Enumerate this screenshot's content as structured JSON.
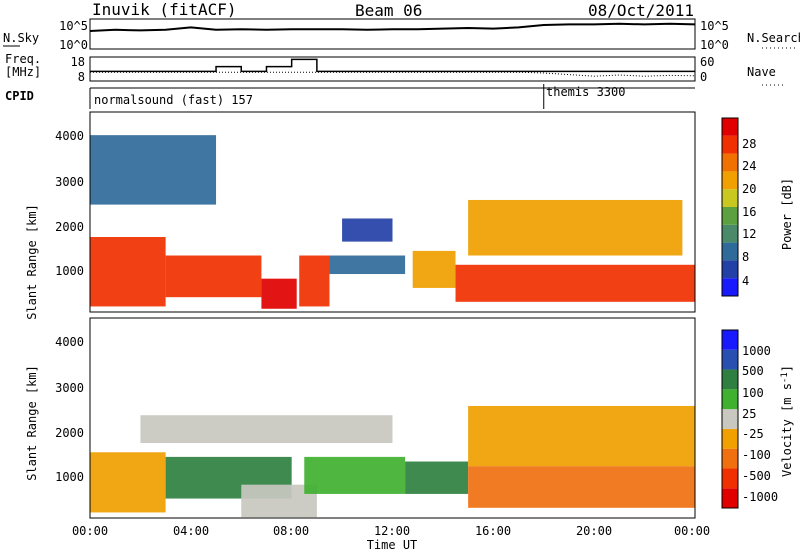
{
  "header": {
    "station": "Inuvik (fitACF)",
    "beam": "Beam 06",
    "date": "08/Oct/2011"
  },
  "nsky": {
    "label": "N.Sky",
    "ticks": [
      "10^5",
      "10^0"
    ],
    "right_label": "N.Search"
  },
  "freq": {
    "label_line1": "Freq.",
    "label_line2": "[MHz]",
    "ticks": [
      "18",
      "8"
    ],
    "right_ticks": [
      "60",
      "0"
    ],
    "right_label": "Nave"
  },
  "cpid": {
    "label": "CPID",
    "modes": [
      {
        "text": "normalsound (fast) 157",
        "start_h": 0
      },
      {
        "text": "themis 3300",
        "start_h": 18
      }
    ]
  },
  "xaxis": {
    "ticks": [
      "00:00",
      "04:00",
      "08:00",
      "12:00",
      "16:00",
      "20:00",
      "00:00"
    ],
    "title": "Time UT"
  },
  "yaxis": {
    "title": "Slant Range [km]",
    "ticks": [
      "1000",
      "2000",
      "3000",
      "4000"
    ]
  },
  "power_scale": {
    "title": "Power [dB]",
    "ticks": [
      "4",
      "8",
      "12",
      "16",
      "20",
      "24",
      "28"
    ],
    "colors": [
      "#1a1aff",
      "#2340a6",
      "#2f6b9a",
      "#4a8a6a",
      "#5ca040",
      "#c8c820",
      "#f0a000",
      "#f07000",
      "#f03000",
      "#e00000"
    ]
  },
  "velocity_scale": {
    "title": "Velocity [m s",
    "title_sup": "-1",
    "title_end": "]",
    "ticks": [
      "1000",
      "500",
      "100",
      "25",
      "-25",
      "-100",
      "-500",
      "-1000"
    ],
    "colors": [
      "#1a1aff",
      "#2850b0",
      "#2f8040",
      "#40b030",
      "#c8c8c0",
      "#f0a000",
      "#f07010",
      "#f03000",
      "#e00000"
    ]
  },
  "chart_data": [
    {
      "type": "line",
      "title": "Inuvik (fitACF)  Beam 06  08/Oct/2011",
      "x_hours": [
        0,
        1,
        2,
        3,
        4,
        5,
        6,
        7,
        8,
        9,
        10,
        11,
        12,
        13,
        14,
        15,
        16,
        17,
        18,
        19,
        20,
        21,
        22,
        23,
        24
      ],
      "series": [
        {
          "name": "N.Sky",
          "values": [
            3.0,
            3.2,
            3.1,
            3.2,
            3.6,
            3.2,
            3.3,
            3.2,
            3.3,
            3.3,
            3.3,
            3.2,
            3.3,
            3.3,
            3.4,
            3.5,
            3.4,
            3.6,
            4.0,
            4.1,
            4.1,
            4.2,
            4.1,
            4.2,
            4.1
          ]
        },
        {
          "name": "Freq. [MHz]",
          "values": [
            12,
            12,
            12,
            12,
            12,
            14,
            12,
            14,
            17,
            12,
            12,
            12,
            12,
            12,
            12,
            12,
            12,
            12,
            12,
            12,
            12,
            12,
            12,
            12,
            12
          ]
        },
        {
          "name": "Nave",
          "values": [
            22,
            22,
            22,
            22,
            22,
            22,
            22,
            22,
            22,
            22,
            22,
            22,
            22,
            22,
            22,
            22,
            22,
            22,
            20,
            16,
            12,
            15,
            12,
            14,
            13
          ]
        }
      ]
    },
    {
      "type": "heatmap",
      "ylabel": "Slant Range [km]",
      "xlabel": "Time UT",
      "variable": "Power [dB]",
      "xlim": [
        0,
        24
      ],
      "ylim": [
        180,
        4500
      ],
      "clim": [
        0,
        30
      ],
      "regions": [
        {
          "t": [
            0.0,
            3.0
          ],
          "r": [
            300,
            1800
          ],
          "value": 26
        },
        {
          "t": [
            3.0,
            6.8
          ],
          "r": [
            500,
            1400
          ],
          "value": 26
        },
        {
          "t": [
            6.8,
            8.2
          ],
          "r": [
            250,
            900
          ],
          "value": 28
        },
        {
          "t": [
            8.3,
            9.5
          ],
          "r": [
            300,
            1400
          ],
          "value": 26
        },
        {
          "t": [
            9.5,
            12.5
          ],
          "r": [
            1000,
            1400
          ],
          "value": 6
        },
        {
          "t": [
            10.0,
            12.0
          ],
          "r": [
            1700,
            2200
          ],
          "value": 4
        },
        {
          "t": [
            12.8,
            14.5
          ],
          "r": [
            700,
            1500
          ],
          "value": 18
        },
        {
          "t": [
            14.5,
            24.0
          ],
          "r": [
            400,
            1200
          ],
          "value": 26
        },
        {
          "t": [
            15.0,
            23.5
          ],
          "r": [
            1400,
            2600
          ],
          "value": 20
        },
        {
          "t": [
            0.0,
            5.0
          ],
          "r": [
            2500,
            4000
          ],
          "value": 8
        }
      ]
    },
    {
      "type": "heatmap",
      "ylabel": "Slant Range [km]",
      "xlabel": "Time UT",
      "variable": "Velocity [m s-1]",
      "xlim": [
        0,
        24
      ],
      "ylim": [
        180,
        4500
      ],
      "clim": [
        -1000,
        1000
      ],
      "regions": [
        {
          "t": [
            0.0,
            3.0
          ],
          "r": [
            300,
            1600
          ],
          "value": -100
        },
        {
          "t": [
            2.0,
            12.0
          ],
          "r": [
            1800,
            2400
          ],
          "value": 0
        },
        {
          "t": [
            3.0,
            8.0
          ],
          "r": [
            600,
            1500
          ],
          "value": 100
        },
        {
          "t": [
            6.0,
            9.0
          ],
          "r": [
            200,
            900
          ],
          "value": 0
        },
        {
          "t": [
            8.5,
            12.5
          ],
          "r": [
            700,
            1500
          ],
          "value": 50
        },
        {
          "t": [
            12.5,
            15.0
          ],
          "r": [
            700,
            1400
          ],
          "value": 100
        },
        {
          "t": [
            15.0,
            24.0
          ],
          "r": [
            400,
            1300
          ],
          "value": -200
        },
        {
          "t": [
            15.0,
            24.0
          ],
          "r": [
            1300,
            2600
          ],
          "value": -60
        }
      ]
    }
  ]
}
